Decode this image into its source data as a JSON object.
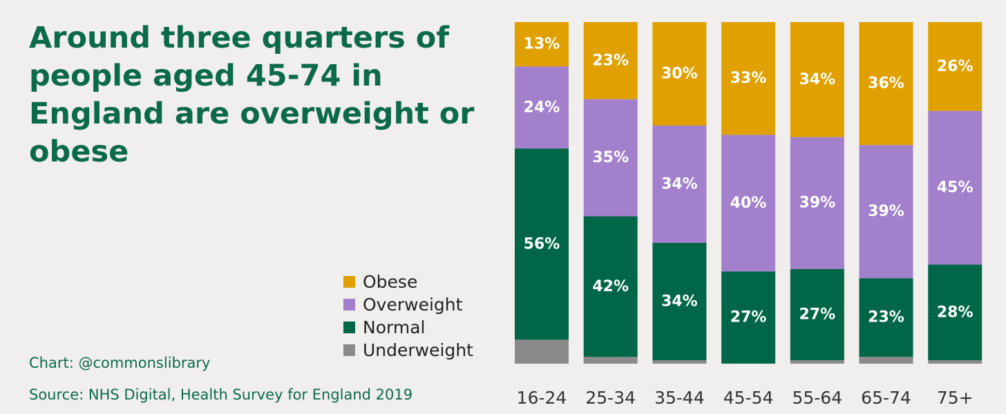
{
  "title": "Around three quarters of people aged 45-74 in England are overweight or obese",
  "credit": "Chart: @commonslibrary",
  "source": "Source: NHS Digital, Health Survey for England 2019",
  "legend": [
    {
      "name": "Obese",
      "color": "#e0a000"
    },
    {
      "name": "Overweight",
      "color": "#a280cc"
    },
    {
      "name": "Normal",
      "color": "#006648"
    },
    {
      "name": "Underweight",
      "color": "#8a8a8a"
    }
  ],
  "chart_data": {
    "type": "bar",
    "stacked": true,
    "categories": [
      "16-24",
      "25-34",
      "35-44",
      "45-54",
      "55-64",
      "65-74",
      "75+"
    ],
    "ylim": [
      0,
      100
    ],
    "series": [
      {
        "name": "Underweight",
        "color": "#8a8a8a",
        "values": [
          7,
          2,
          1,
          0,
          1,
          2,
          1
        ],
        "labels": [
          "",
          "",
          "",
          "",
          "",
          "",
          ""
        ]
      },
      {
        "name": "Normal",
        "color": "#006648",
        "values": [
          56,
          42,
          34,
          27,
          27,
          23,
          28
        ],
        "labels": [
          "56%",
          "42%",
          "34%",
          "27%",
          "27%",
          "23%",
          "28%"
        ]
      },
      {
        "name": "Overweight",
        "color": "#a280cc",
        "values": [
          24,
          35,
          34,
          40,
          39,
          39,
          45
        ],
        "labels": [
          "24%",
          "35%",
          "34%",
          "40%",
          "39%",
          "39%",
          "45%"
        ]
      },
      {
        "name": "Obese",
        "color": "#e0a000",
        "values": [
          13,
          23,
          30,
          33,
          34,
          36,
          26
        ],
        "labels": [
          "13%",
          "23%",
          "30%",
          "33%",
          "34%",
          "36%",
          "26%"
        ]
      }
    ]
  }
}
